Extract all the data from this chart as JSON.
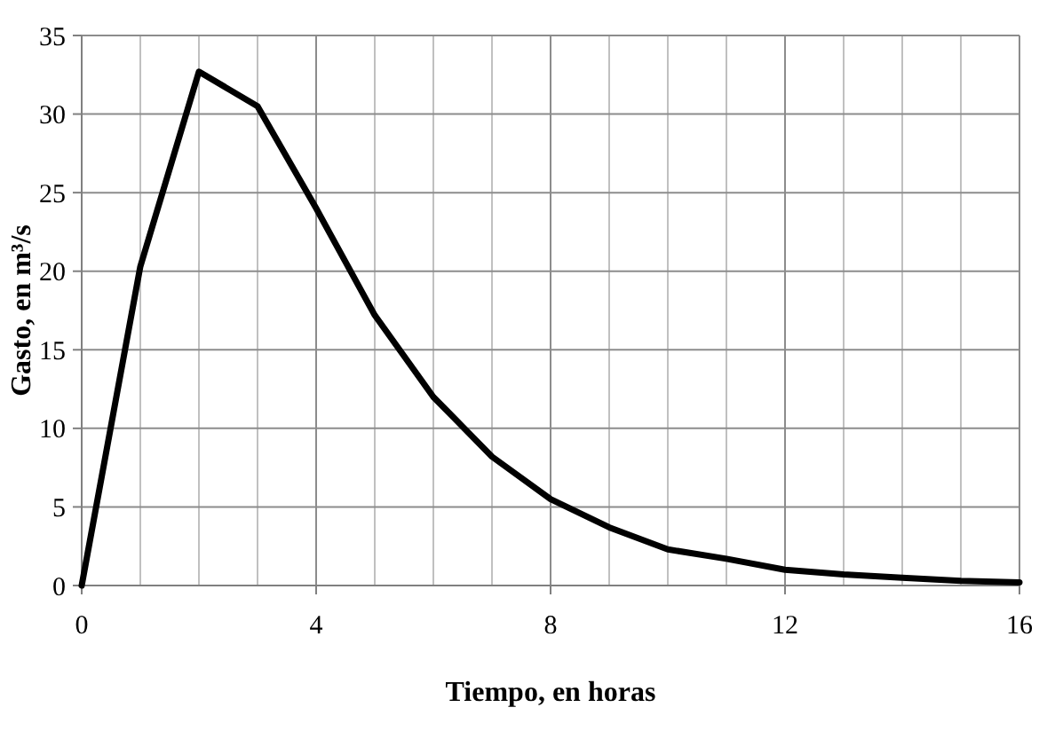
{
  "chart_data": {
    "type": "line",
    "xlabel": "Tiempo, en horas",
    "ylabel": "Gasto, en m³/s",
    "x": [
      0,
      1,
      2,
      3,
      4,
      5,
      6,
      7,
      8,
      9,
      10,
      11,
      12,
      13,
      14,
      15,
      16
    ],
    "series": [
      {
        "color": "#000000",
        "values": [
          0,
          20.3,
          32.7,
          30.5,
          24,
          17.2,
          12,
          8.2,
          5.5,
          3.7,
          2.3,
          1.7,
          1.0,
          0.7,
          0.5,
          0.3,
          0.2
        ]
      }
    ],
    "xlim": [
      0,
      16
    ],
    "xticks": [
      0,
      {
        "value": 1,
        "label": null
      },
      {
        "value": 2,
        "label": null
      },
      {
        "value": 3,
        "label": null
      },
      4,
      {
        "value": 5,
        "label": null
      },
      {
        "value": 6,
        "label": null
      },
      {
        "value": 7,
        "label": null
      },
      8,
      {
        "value": 9,
        "label": null
      },
      {
        "value": 10,
        "label": null
      },
      {
        "value": 11,
        "label": null
      },
      12,
      {
        "value": 13,
        "label": null
      },
      {
        "value": 14,
        "label": null
      },
      {
        "value": 15,
        "label": null
      },
      16
    ],
    "ylim": [
      0,
      35
    ],
    "yticks": [
      0,
      5,
      10,
      15,
      20,
      25,
      30,
      35
    ],
    "grid": true,
    "marker": "none",
    "line_style": "solid"
  }
}
